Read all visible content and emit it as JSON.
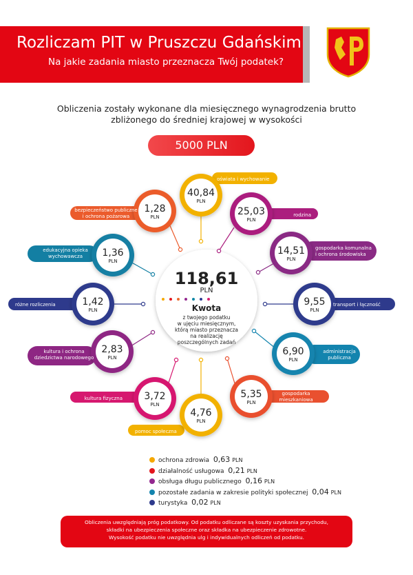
{
  "header": {
    "title": "Rozliczam PIT w Pruszczu Gdańskim",
    "subtitle": "Na jakie zadania miasto przeznacza Twój podatek?",
    "crest_icon": "pruszcz-gdanski-crest-icon"
  },
  "intro": {
    "line1": "Obliczenia zostały wykonane dla miesięcznego wynagrodzenia brutto",
    "line2": "zbliżonego do średniej krajowej w wysokości",
    "amount": "5000 PLN"
  },
  "center": {
    "value": "118,61",
    "unit": "PLN",
    "label": "Kwota",
    "desc": [
      "z twojego podatku",
      "w ujęciu miesięcznym,",
      "którą miasto przeznacza",
      "na realizację",
      "poszczególnych zadań"
    ],
    "dot_colors": [
      "#f5a800",
      "#e3161d",
      "#ec6a2c",
      "#93278f",
      "#0e87a6",
      "#2b3990",
      "#d62070"
    ]
  },
  "items": [
    {
      "value": "40,84",
      "unit": "PLN",
      "label": [
        "oświata i wychowanie"
      ],
      "color": "#f2b100"
    },
    {
      "value": "25,03",
      "unit": "PLN",
      "label": [
        "rodzina"
      ],
      "color": "#ab1e7e"
    },
    {
      "value": "14,51",
      "unit": "PLN",
      "label": [
        "gospodarka komunalna",
        "i ochrona środowiska"
      ],
      "color": "#8a2a84"
    },
    {
      "value": "9,55",
      "unit": "PLN",
      "label": [
        "transport i łączność"
      ],
      "color": "#2e3a8c"
    },
    {
      "value": "6,90",
      "unit": "PLN",
      "label": [
        "administracja",
        "publiczna"
      ],
      "color": "#1384ae"
    },
    {
      "value": "5,35",
      "unit": "PLN",
      "label": [
        "gospodarka",
        "mieszkaniowa"
      ],
      "color": "#e9502f"
    },
    {
      "value": "4,76",
      "unit": "PLN",
      "label": [
        "pomoc społeczna"
      ],
      "color": "#f2b100"
    },
    {
      "value": "3,72",
      "unit": "PLN",
      "label": [
        "kultura fizyczna"
      ],
      "color": "#d6186f"
    },
    {
      "value": "2,83",
      "unit": "PLN",
      "label": [
        "kultura i ochrona",
        "dziedzictwa narodowego"
      ],
      "color": "#8e2683"
    },
    {
      "value": "1,42",
      "unit": "PLN",
      "label": [
        "różne rozliczenia"
      ],
      "color": "#2e3a8c"
    },
    {
      "value": "1,36",
      "unit": "PLN",
      "label": [
        "edukacyjna opieka",
        "wychowawcza"
      ],
      "color": "#137fa3"
    },
    {
      "value": "1,28",
      "unit": "PLN",
      "label": [
        "bezpieczeństwo publiczne",
        "i ochrona pożarowa"
      ],
      "color": "#eb5b2c"
    }
  ],
  "legend": [
    {
      "label": "ochrona zdrowia",
      "value": "0,63",
      "unit": "PLN",
      "color": "#f5a800"
    },
    {
      "label": "działalność usługowa",
      "value": "0,21",
      "unit": "PLN",
      "color": "#e3161d"
    },
    {
      "label": "obsługa długu publicznego",
      "value": "0,16",
      "unit": "PLN",
      "color": "#93278f"
    },
    {
      "label": "pozostałe zadania w zakresie polityki społecznej",
      "value": "0,04",
      "unit": "PLN",
      "color": "#1384ae"
    },
    {
      "label": "turystyka",
      "value": "0,02",
      "unit": "PLN",
      "color": "#2e3a8c"
    }
  ],
  "footer": {
    "line1": "Obliczenia uwzględniają próg podatkowy. Od podatku odliczane są koszty uzyskania przychodu,",
    "line2": "składki na ubezpieczenia społeczne oraz składka na ubezpieczenie zdrowotne.",
    "line3": "Wysokość podatku nie uwzględnia ulg i indywidualnych odliczeń od podatku."
  }
}
